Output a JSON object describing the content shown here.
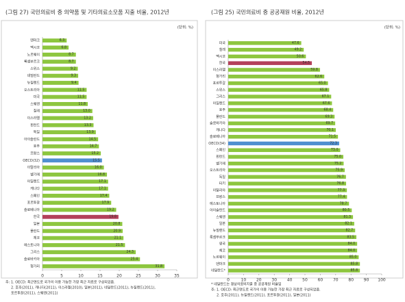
{
  "chart_data": [
    {
      "type": "barh",
      "title": "(그림 27) 국민의료비 중 의약품 및 기타의료소모품 지출 비율, 2012년",
      "unit": "(단위: %)",
      "categories": [
        "덴마크",
        "멕시코",
        "노르웨이",
        "룩셈부르크",
        "스위스",
        "네덜란드",
        "뉴질랜드",
        "오스트리아",
        "미국",
        "스웨덴",
        "칠레",
        "이스라엘",
        "핀란드",
        "독일",
        "아이슬란드",
        "호주",
        "프랑스",
        "OECD(32)",
        "이탈리아",
        "벨기에",
        "아일랜드",
        "캐나다",
        "스페인",
        "포르투갈",
        "슬로베니아",
        "한국",
        "일본",
        "폴란드",
        "체코",
        "에스토니아",
        "그리스",
        "슬로바키아",
        "헝가리"
      ],
      "values": [
        6.3,
        6.8,
        8.7,
        8.7,
        9.2,
        9.3,
        9.4,
        11.5,
        11.5,
        11.8,
        13.0,
        13.2,
        13.3,
        13.9,
        14.5,
        14.7,
        15.2,
        15.5,
        16.0,
        16.8,
        17.1,
        17.1,
        17.4,
        17.9,
        19.2,
        19.8,
        20.8,
        20.9,
        21.1,
        21.5,
        24.3,
        25.4,
        31.8
      ],
      "value_labels": [
        "6.3",
        "6.8",
        "8.7",
        "8.7",
        "9.2",
        "9.3",
        "9.4",
        "11.5",
        "11.5",
        "11.8",
        "13.0",
        "13.2",
        "13.3",
        "13.9",
        "14.5",
        "14.7",
        "15.2",
        "15.5",
        "16.0",
        "16.8",
        "17.1",
        "17.1",
        "17.4",
        "17.9",
        "19.2",
        "19.8",
        "20.8",
        "20.9",
        "21.1",
        "21.5",
        "24.3",
        "25.4",
        "31.8"
      ],
      "colors": [
        "#8dc63f",
        "#8dc63f",
        "#8dc63f",
        "#8dc63f",
        "#8dc63f",
        "#8dc63f",
        "#8dc63f",
        "#8dc63f",
        "#8dc63f",
        "#8dc63f",
        "#8dc63f",
        "#8dc63f",
        "#8dc63f",
        "#8dc63f",
        "#8dc63f",
        "#8dc63f",
        "#8dc63f",
        "#4f8fd0",
        "#8dc63f",
        "#8dc63f",
        "#8dc63f",
        "#8dc63f",
        "#8dc63f",
        "#8dc63f",
        "#8dc63f",
        "#b3405a",
        "#8dc63f",
        "#8dc63f",
        "#8dc63f",
        "#8dc63f",
        "#8dc63f",
        "#8dc63f",
        "#8dc63f"
      ],
      "label_colors": {
        "OECD(32)": "#4f8fd0",
        "한국": "#b3405a"
      },
      "xlim": [
        0,
        35
      ],
      "xticks": [
        0,
        5,
        10,
        15,
        20,
        25,
        30,
        35
      ],
      "notes": [
        "주: 1. OECD: 최근연도로 국가의 이용 가능한 가장 최근 자료로 구성되었음.",
        "2. 호주(2011), 캐나다(2011), 이스라엘(2010), 일본(2011), 네덜란드(2011), 뉴질랜드(2011),",
        "포르투갈(2011), 스웨덴(2011)"
      ]
    },
    {
      "type": "barh",
      "title": "(그림 25) 국민의료비 중 공공재원 비율, 2012년",
      "unit": "(단위: %)",
      "categories": [
        "미국",
        "칠레",
        "멕시코",
        "한국",
        "이스라엘",
        "헝가리",
        "포르투갈",
        "스위스",
        "그리스",
        "아일랜드",
        "호주",
        "폴란드",
        "슬로바키아",
        "캐나다",
        "슬로베니아",
        "OECD(34)",
        "스페인",
        "핀란드",
        "벨기에",
        "오스트리아",
        "독일",
        "터키",
        "이탈리아",
        "프랑스",
        "에스토니아",
        "아이슬란드",
        "스웨덴",
        "일본",
        "뉴질랜드",
        "룩셈부르크",
        "영국",
        "체코",
        "노르웨이",
        "덴마크",
        "네덜란드*"
      ],
      "values": [
        47.6,
        49.2,
        50.6,
        54.5,
        59.8,
        62.6,
        65.0,
        65.8,
        67.1,
        67.6,
        68.4,
        69.3,
        69.7,
        70.1,
        71.5,
        72.3,
        73.0,
        75.0,
        75.2,
        75.9,
        76.7,
        76.8,
        77.3,
        77.4,
        78.7,
        80.5,
        81.3,
        82.1,
        82.7,
        83.5,
        84.0,
        84.0,
        85.0,
        85.8,
        85.8
      ],
      "value_labels": [
        "47.6",
        "49.2",
        "50.6",
        "54.5",
        "59.8",
        "62.6",
        "65.0",
        "65.8",
        "67.1",
        "67.6",
        "68.4",
        "69.3",
        "69.7",
        "70.1",
        "71.5",
        "72.3",
        "73.0",
        "75.0",
        "75.2",
        "75.9",
        "76.7",
        "76.8",
        "77.3",
        "77.4",
        "78.7",
        "80.5",
        "81.3",
        "82.1",
        "82.7",
        "83.5",
        "84.0",
        "84.0",
        "85.0",
        "85.8",
        "85.8"
      ],
      "colors": [
        "#8dc63f",
        "#8dc63f",
        "#8dc63f",
        "#b3405a",
        "#8dc63f",
        "#8dc63f",
        "#8dc63f",
        "#8dc63f",
        "#8dc63f",
        "#8dc63f",
        "#8dc63f",
        "#8dc63f",
        "#8dc63f",
        "#8dc63f",
        "#8dc63f",
        "#4f8fd0",
        "#8dc63f",
        "#8dc63f",
        "#8dc63f",
        "#8dc63f",
        "#8dc63f",
        "#8dc63f",
        "#8dc63f",
        "#8dc63f",
        "#8dc63f",
        "#8dc63f",
        "#8dc63f",
        "#8dc63f",
        "#8dc63f",
        "#8dc63f",
        "#8dc63f",
        "#8dc63f",
        "#8dc63f",
        "#8dc63f",
        "#8dc63f"
      ],
      "label_colors": {
        "OECD(34)": "#4f8fd0",
        "한국": "#b3405a"
      },
      "xlim": [
        0,
        100
      ],
      "xticks": [
        0,
        10,
        20,
        30,
        40,
        50,
        60,
        70,
        80,
        90,
        100
      ],
      "notes": [
        "* 네덜란드는 경상의료비지출 중 공공재원 비율임",
        "주: 1. OECD: 최근연도로 국가의 이용 가능한 가장 최근 자료로 구성되었음.",
        "2. 호주(2011), 뉴질랜드(2011), 포르투갈(2011), 일본(2011)"
      ]
    }
  ]
}
